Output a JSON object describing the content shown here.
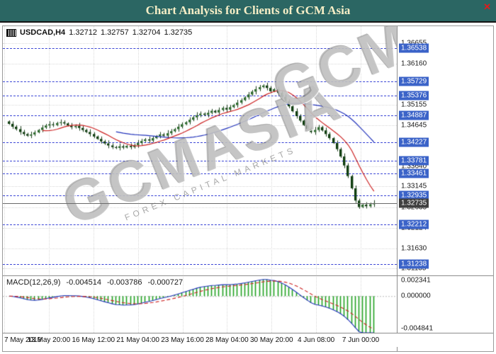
{
  "titlebar": {
    "title": "Chart Analysis for Clients of GCM Asia",
    "close_glyph": "✕"
  },
  "symbol_info": {
    "symbol": "USDCAD,H4",
    "open": "1.32712",
    "high": "1.32757",
    "low": "1.32704",
    "close": "1.32735"
  },
  "watermark": {
    "text": "GCMASIA",
    "subtitle": "FOREX CAPITAL MARKETS"
  },
  "price_axis": {
    "plain": [
      "1.36655",
      "1.36160",
      "1.35155",
      "1.34645",
      "1.33640",
      "1.33145",
      "1.32635",
      "1.32124",
      "1.31630",
      "1.31135"
    ],
    "levels": [
      "1.36538",
      "1.35729",
      "1.35376",
      "1.34887",
      "1.34227",
      "1.33781",
      "1.33461",
      "1.32935",
      "1.32212",
      "1.31238"
    ],
    "current": "1.32735"
  },
  "time_axis": {
    "labels": [
      "7 May 2019",
      "13 May 20:00",
      "16 May 12:00",
      "21 May 04:00",
      "23 May 16:00",
      "28 May 04:00",
      "30 May 20:00",
      "4 Jun 08:00",
      "7 Jun 00:00"
    ]
  },
  "macd": {
    "label": "MACD(12,26,9)",
    "values": [
      "-0.004514",
      "-0.003786",
      "-0.000727"
    ],
    "axis": [
      "0.002341",
      "0.000000",
      "-0.004841"
    ]
  },
  "colors": {
    "titlebar_bg": "#2b6663",
    "titlebar_text": "#f6eec6",
    "close_mark": "#e21b1b",
    "level_line": "#3c47d6",
    "level_label_bg": "#3b63c8",
    "current_label_bg": "#3f3f3f",
    "watermark_text": "rgba(150,150,150,0.48)",
    "watermark_sub": "rgba(140,140,140,0.75)"
  },
  "chart_data": [
    {
      "type": "candlestick",
      "title": "USDCAD H4",
      "price_range": [
        1.31,
        1.369
      ],
      "first_open": 1.3474,
      "base_wick": 0.0005,
      "closes": [
        1.3468,
        1.3461,
        1.3455,
        1.3448,
        1.3443,
        1.3439,
        1.3442,
        1.3447,
        1.3453,
        1.3459,
        1.3464,
        1.3467,
        1.3465,
        1.347,
        1.3472,
        1.3469,
        1.3464,
        1.346,
        1.3463,
        1.3458,
        1.3453,
        1.3448,
        1.3443,
        1.3437,
        1.3431,
        1.3425,
        1.342,
        1.3415,
        1.3411,
        1.3409,
        1.3413,
        1.341,
        1.3414,
        1.3411,
        1.3416,
        1.3421,
        1.3426,
        1.343,
        1.3427,
        1.3433,
        1.3438,
        1.3442,
        1.3439,
        1.3445,
        1.345,
        1.3455,
        1.3461,
        1.3467,
        1.3472,
        1.3478,
        1.3484,
        1.3489,
        1.3493,
        1.349,
        1.3495,
        1.35,
        1.3496,
        1.3502,
        1.3507,
        1.3503,
        1.3509,
        1.3514,
        1.352,
        1.3526,
        1.3533,
        1.354,
        1.3547,
        1.3553,
        1.3558,
        1.3562,
        1.3556,
        1.3548,
        1.3553,
        1.3544,
        1.3534,
        1.3523,
        1.3511,
        1.3499,
        1.3487,
        1.3476,
        1.3465,
        1.3456,
        1.3448,
        1.3453,
        1.346,
        1.3452,
        1.3443,
        1.3433,
        1.3421,
        1.3406,
        1.3388,
        1.3366,
        1.334,
        1.331,
        1.328,
        1.3264,
        1.327,
        1.3266,
        1.3271,
        1.32735
      ],
      "grid_prices": [
        1.36655,
        1.3616,
        1.35155,
        1.34645,
        1.3364,
        1.33145,
        1.32635,
        1.32124,
        1.3163,
        1.31135
      ],
      "level_lines": [
        1.36538,
        1.35729,
        1.35376,
        1.34887,
        1.34227,
        1.33781,
        1.33461,
        1.32935,
        1.32212,
        1.31238
      ],
      "current_price": 1.32735,
      "ma_fast": {
        "period": 10,
        "color": "#cc2222"
      },
      "ma_slow": {
        "period": 30,
        "color": "#2233bb"
      },
      "up_color": "#2d6a2d",
      "down_color": "#0f3d0f",
      "wick_color": "#1c3d1c"
    },
    {
      "type": "macd",
      "params": [
        12,
        26,
        9
      ],
      "display_values": [
        -0.004514,
        -0.003786,
        -0.000727
      ],
      "range": [
        -0.0055,
        0.003
      ],
      "axis_ticks": [
        0.002341,
        0.0,
        -0.004841
      ],
      "hist_color": "#1fa11f",
      "line_color": "#2233bb",
      "signal_color": "#cc2222"
    }
  ]
}
